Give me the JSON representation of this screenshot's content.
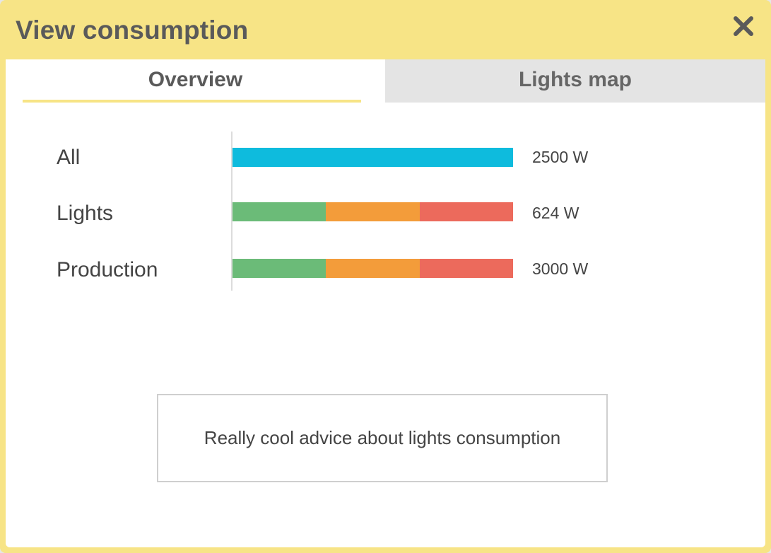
{
  "dialog": {
    "title": "View consumption",
    "close_icon": "close-icon"
  },
  "tabs": [
    {
      "label": "Overview",
      "active": true
    },
    {
      "label": "Lights map",
      "active": false
    }
  ],
  "colors": {
    "header": "#f7e486",
    "all_bar": "#0ebbdd",
    "low": "#6bbb78",
    "mid": "#f39c3a",
    "high": "#ec6a5c"
  },
  "consumption": {
    "rows": [
      {
        "label": "All",
        "value": "2500 W",
        "segments": [
          {
            "color": "#0ebbdd",
            "fraction": 1.0
          }
        ]
      },
      {
        "label": "Lights",
        "value": "624 W",
        "segments": [
          {
            "color": "#6bbb78",
            "fraction": 0.333
          },
          {
            "color": "#f39c3a",
            "fraction": 0.334
          },
          {
            "color": "#ec6a5c",
            "fraction": 0.333
          }
        ]
      },
      {
        "label": "Production",
        "value": "3000 W",
        "segments": [
          {
            "color": "#6bbb78",
            "fraction": 0.333
          },
          {
            "color": "#f39c3a",
            "fraction": 0.334
          },
          {
            "color": "#ec6a5c",
            "fraction": 0.333
          }
        ]
      }
    ]
  },
  "advice": {
    "text": "Really cool advice about lights consumption"
  }
}
